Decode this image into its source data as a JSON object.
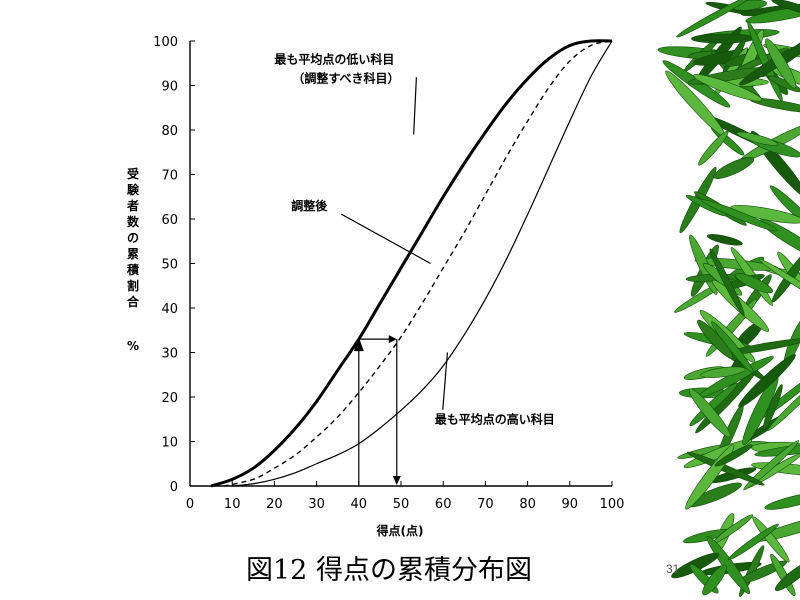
{
  "slide": {
    "caption": "図12 得点の累積分布図",
    "page_number": "31",
    "decoration": "bamboo-leaves",
    "decoration_color": "#2f8f1f"
  },
  "chart_data": {
    "type": "line",
    "title": "",
    "xlabel": "得点(点)",
    "ylabel": "受験者数の累積割合　%",
    "xlim": [
      0,
      100
    ],
    "ylim": [
      0,
      100
    ],
    "x_ticks": [
      "0",
      "10",
      "20",
      "30",
      "40",
      "50",
      "60",
      "70",
      "80",
      "90",
      "100"
    ],
    "y_ticks": [
      "0",
      "10",
      "20",
      "30",
      "40",
      "50",
      "60",
      "70",
      "80",
      "90",
      "100"
    ],
    "grid": false,
    "legend": "none",
    "series": [
      {
        "name": "最も平均点の低い科目（調整すべき科目）",
        "style": "thick-solid",
        "x": [
          5,
          10,
          15,
          20,
          25,
          30,
          35,
          40,
          45,
          50,
          55,
          60,
          65,
          70,
          75,
          80,
          85,
          90,
          95,
          100
        ],
        "y": [
          0,
          1.5,
          4,
          8,
          13,
          19,
          26,
          33,
          41,
          49,
          57,
          65,
          72.5,
          79.5,
          86,
          91.5,
          96,
          99,
          100,
          100
        ]
      },
      {
        "name": "調整後",
        "style": "dashed",
        "x": [
          8,
          15,
          20,
          25,
          30,
          35,
          40,
          45,
          50,
          55,
          60,
          65,
          70,
          75,
          80,
          85,
          90,
          95,
          100
        ],
        "y": [
          0,
          1.5,
          4,
          7,
          11,
          15.5,
          21,
          27,
          33.5,
          41,
          49,
          57,
          65.5,
          74,
          82,
          89.5,
          95.5,
          99,
          100
        ]
      },
      {
        "name": "最も平均点の高い科目",
        "style": "thin-solid",
        "x": [
          10,
          15,
          20,
          25,
          30,
          35,
          40,
          45,
          50,
          55,
          60,
          65,
          70,
          75,
          80,
          85,
          90,
          95,
          100
        ],
        "y": [
          0,
          0.5,
          1.5,
          3,
          5,
          7,
          9.5,
          13,
          17,
          21.5,
          27,
          34,
          42,
          51,
          61,
          71.5,
          82,
          92,
          100
        ]
      }
    ],
    "annotations": [
      {
        "text": "最も平均点の低い科目",
        "line2": "（調整すべき科目）",
        "at": [
          53,
          79
        ],
        "label_pos": [
          20,
          95
        ]
      },
      {
        "text": "調整後",
        "at": [
          57,
          50
        ],
        "label_pos": [
          24,
          62
        ]
      },
      {
        "text": "最も平均点の高い科目",
        "at": [
          61,
          30
        ],
        "label_pos": [
          58,
          14
        ]
      }
    ],
    "conversion_arrow": {
      "from_x": 40,
      "to_x": 49,
      "y": 33
    }
  }
}
